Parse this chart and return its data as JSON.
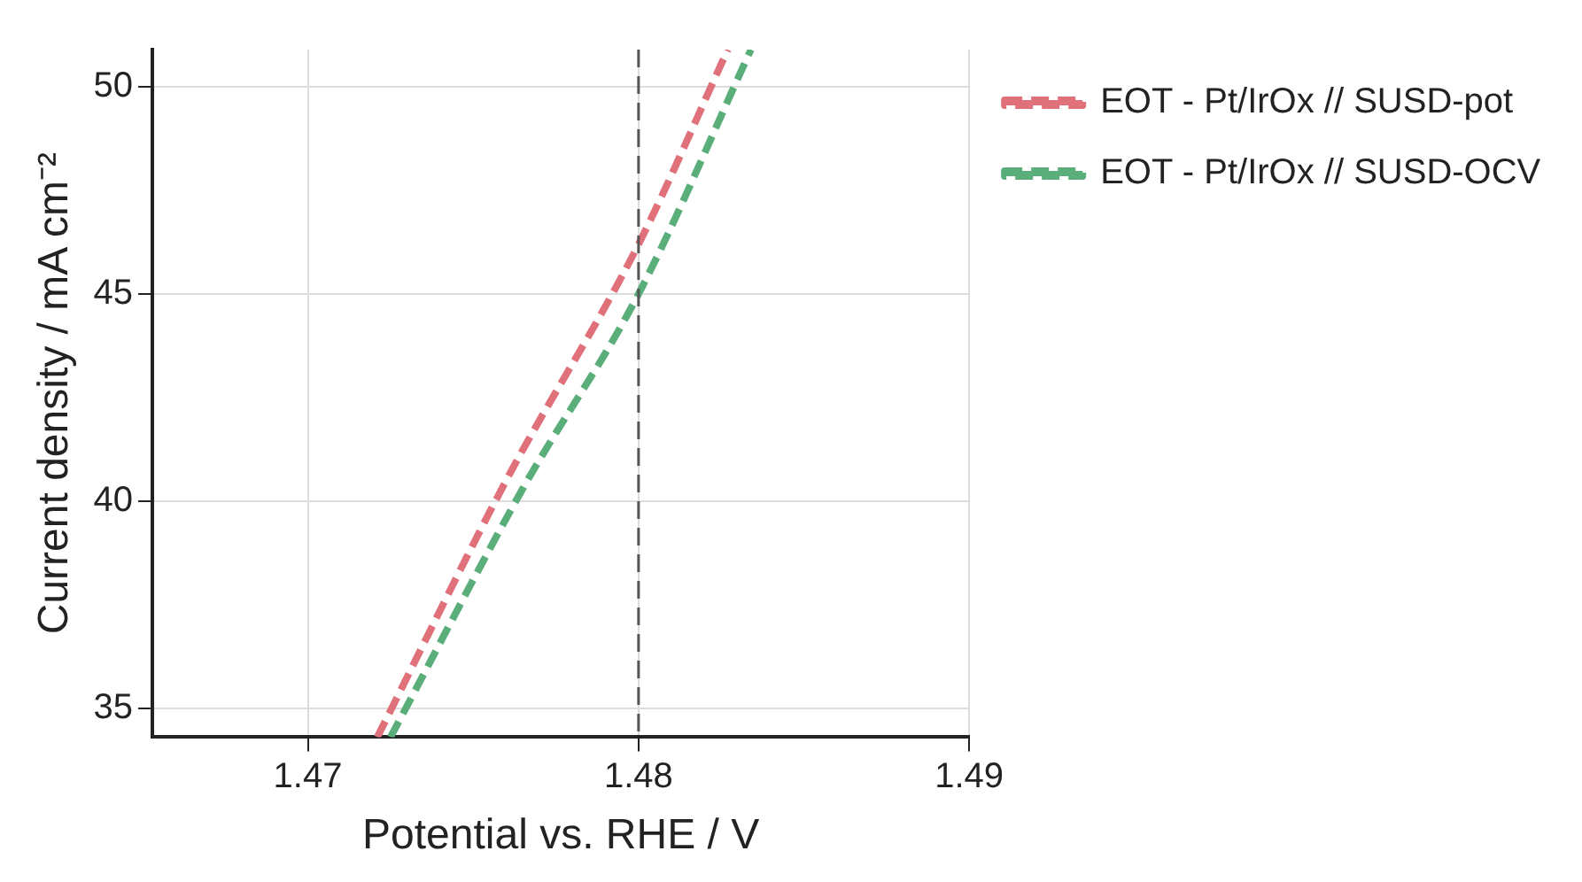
{
  "chart_data": {
    "type": "line",
    "xlabel": "Potential vs. RHE / V",
    "ylabel": "Current density / mA cm⁻²",
    "xlim": [
      1.4653,
      1.49
    ],
    "ylim": [
      34.3,
      50.9
    ],
    "xticks": [
      1.47,
      1.48,
      1.49
    ],
    "yticks": [
      35,
      40,
      45,
      50
    ],
    "grid": true,
    "legend": "top right",
    "line_style": "dashed",
    "marker": "none",
    "series": [
      {
        "name": "EOT - Pt/IrOx // SUSD-pot",
        "color": "#e0707a",
        "x": [
          1.4721,
          1.476,
          1.48,
          1.4827
        ],
        "values": [
          34.3,
          40.5,
          46.2,
          50.9
        ]
      },
      {
        "name": "EOT - Pt/IrOx // SUSD-OCV",
        "color": "#5aae7a",
        "x": [
          1.4725,
          1.4765,
          1.48,
          1.4834
        ],
        "values": [
          34.3,
          40.3,
          45.0,
          50.9
        ]
      }
    ],
    "ref_lines": [
      {
        "axis": "x",
        "value": 1.48,
        "color": "#555555",
        "line_style": "dashed"
      }
    ]
  }
}
